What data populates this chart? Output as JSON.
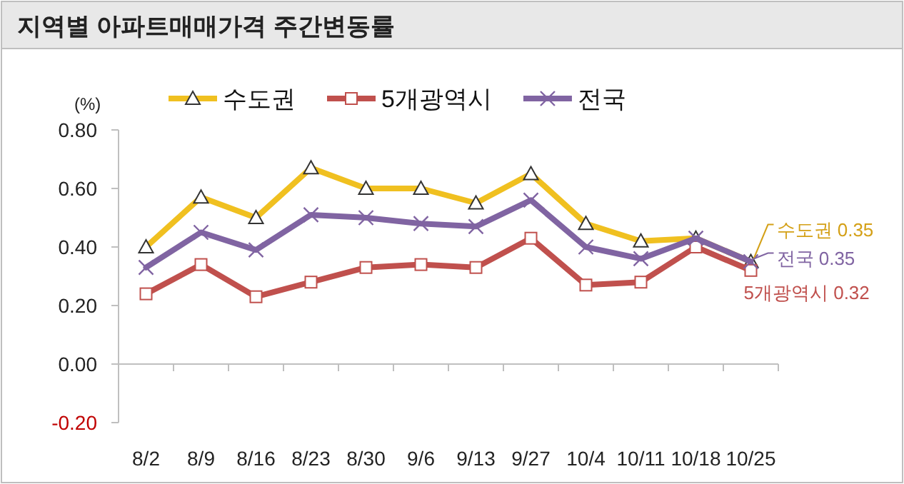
{
  "chart_data": {
    "type": "line",
    "title": "지역별 아파트매매가격 주간변동률",
    "ylabel": "(%)",
    "categories": [
      "8/2",
      "8/9",
      "8/16",
      "8/23",
      "8/30",
      "9/6",
      "9/13",
      "9/27",
      "10/4",
      "10/11",
      "10/18",
      "10/25"
    ],
    "series": [
      {
        "name": "수도권",
        "color": "#f0c020",
        "marker": "triangle",
        "values": [
          0.4,
          0.57,
          0.5,
          0.67,
          0.6,
          0.6,
          0.55,
          0.65,
          0.48,
          0.42,
          0.43,
          0.35
        ]
      },
      {
        "name": "5개광역시",
        "color": "#c0504d",
        "marker": "square",
        "values": [
          0.24,
          0.34,
          0.23,
          0.28,
          0.33,
          0.34,
          0.33,
          0.43,
          0.27,
          0.28,
          0.4,
          0.32
        ]
      },
      {
        "name": "전국",
        "color": "#8064a2",
        "marker": "cross",
        "values": [
          0.33,
          0.45,
          0.39,
          0.51,
          0.5,
          0.48,
          0.47,
          0.56,
          0.4,
          0.36,
          0.43,
          0.35
        ]
      }
    ],
    "ylim": [
      -0.2,
      0.8
    ],
    "yticks": [
      {
        "value": -0.2,
        "label": "-0.20"
      },
      {
        "value": 0,
        "label": "0.00"
      },
      {
        "value": 0.2,
        "label": "0.20"
      },
      {
        "value": 0.4,
        "label": "0.40"
      },
      {
        "value": 0.6,
        "label": "0.60"
      },
      {
        "value": 0.8,
        "label": "0.80"
      }
    ],
    "annotations": [
      {
        "text": "수도권 0.35",
        "x": "10/25",
        "y": 0.35
      },
      {
        "text": "전국 0.35",
        "x": "10/25",
        "y": 0.35
      },
      {
        "text": "5개광역시 0.32",
        "x": "10/25",
        "y": 0.32
      }
    ],
    "legend": "top",
    "line_style": "solid"
  }
}
